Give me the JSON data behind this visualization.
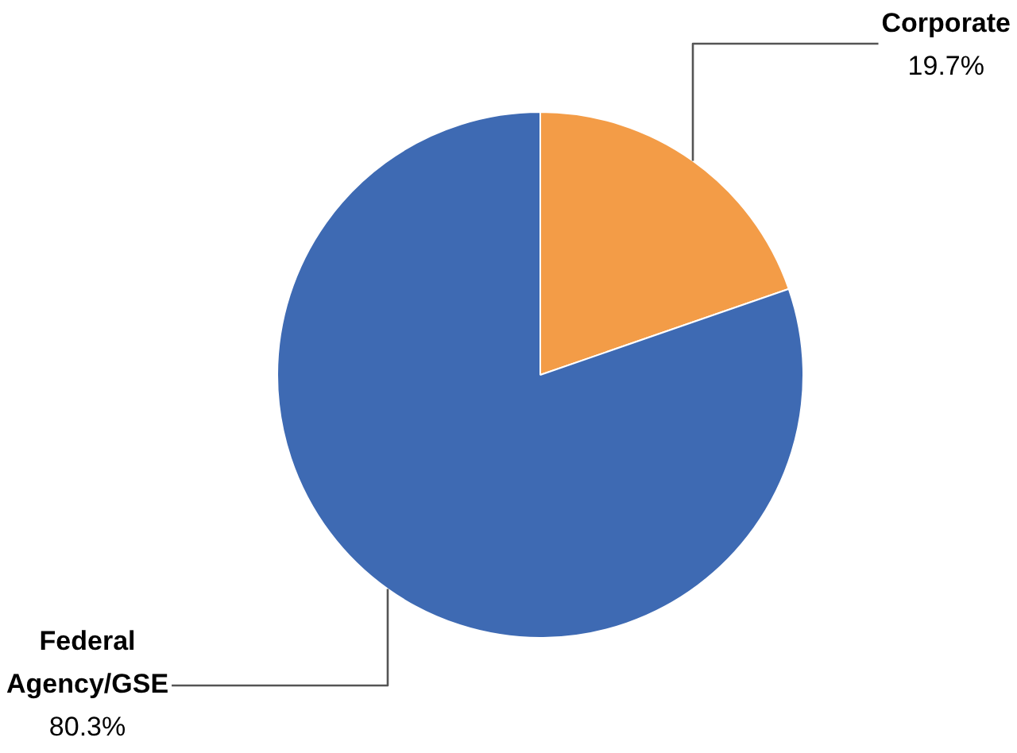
{
  "chart_data": {
    "type": "pie",
    "categories": [
      "Corporate",
      "Federal Agency/GSE"
    ],
    "values": [
      19.7,
      80.3
    ],
    "colors": [
      "#f39c47",
      "#3e6ab3"
    ],
    "value_labels": [
      "19.7%",
      "80.3%"
    ]
  }
}
